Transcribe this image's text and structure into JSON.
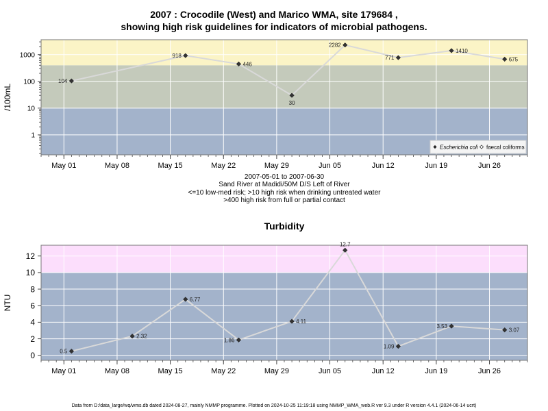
{
  "title_line1": "2007 : Crocodile (West) and Marico WMA, site 179684 ,",
  "title_line2": "showing high risk guidelines for indicators of microbial pathogens.",
  "notes": [
    "2007-05-01 to 2007-06-30",
    "Sand River at Madidi/50M D/S Left of River",
    "<=10 low-med risk; >10 high risk when drinking untreated water",
    ">400 high risk from full or partial contact"
  ],
  "footer": "Data from D:/data_large/wq/wms.db dated 2024-08-27, mainly NMMP programme. Plotted on 2024-10-25 11:19:18 using NMMP_WMA_web.R ver 9.3 under R version 4.4.1 (2024-06-14 ucrt)",
  "colors": {
    "grid": "#ffffff",
    "line": "#d9d9d9",
    "point": "#333333",
    "microbe_bands": [
      "#a3b3cb",
      "#c4cabb",
      "#fbf4c6"
    ],
    "turbidity_bands": [
      "#a3b3cb",
      "#fcdefc"
    ]
  },
  "chart_data": [
    {
      "type": "line",
      "title": "",
      "xlabel": "",
      "ylabel": "/100mL",
      "scale": "log10",
      "ylim": [
        0.18,
        3600
      ],
      "xlim": [
        "2007-04-28",
        "2007-07-01"
      ],
      "x_ticks": [
        "May 01",
        "May 08",
        "May 15",
        "May 22",
        "May 29",
        "Jun 05",
        "Jun 12",
        "Jun 19",
        "Jun 26"
      ],
      "y_ticks": [
        "1",
        "10",
        "100",
        "1000"
      ],
      "bands": [
        {
          "from": 0.18,
          "to": 10
        },
        {
          "from": 10,
          "to": 400
        },
        {
          "from": 400,
          "to": 3600
        }
      ],
      "legend": {
        "position": "bottom-right",
        "entries": [
          "Escherichia coli",
          "faecal coliforms"
        ]
      },
      "series": [
        {
          "name": "Escherichia coli",
          "x": [
            "2007-05-02",
            "2007-05-17",
            "2007-05-24",
            "2007-05-31",
            "2007-06-07",
            "2007-06-14",
            "2007-06-21",
            "2007-06-28"
          ],
          "values": [
            104,
            918,
            446,
            30,
            2282,
            771,
            1410,
            675
          ],
          "labels": [
            "104",
            "918",
            "446",
            "30",
            "2282",
            "771",
            "1410",
            "675"
          ],
          "label_side": [
            "left",
            "left",
            "right",
            "below",
            "left",
            "left",
            "right",
            "right"
          ]
        }
      ]
    },
    {
      "type": "line",
      "title": "Turbidity",
      "xlabel": "",
      "ylabel": "NTU",
      "ylim": [
        -0.6,
        13.3
      ],
      "xlim": [
        "2007-04-28",
        "2007-07-01"
      ],
      "x_ticks": [
        "May 01",
        "May 08",
        "May 15",
        "May 22",
        "May 29",
        "Jun 05",
        "Jun 12",
        "Jun 19",
        "Jun 26"
      ],
      "y_ticks": [
        "0",
        "2",
        "4",
        "6",
        "8",
        "10",
        "12"
      ],
      "bands": [
        {
          "from": -0.6,
          "to": 10
        },
        {
          "from": 10,
          "to": 13.3
        }
      ],
      "series": [
        {
          "x": [
            "2007-05-02",
            "2007-05-10",
            "2007-05-17",
            "2007-05-24",
            "2007-05-31",
            "2007-06-07",
            "2007-06-14",
            "2007-06-21",
            "2007-06-28"
          ],
          "values": [
            0.5,
            2.32,
            6.77,
            1.86,
            4.11,
            12.7,
            1.09,
            3.53,
            3.07
          ],
          "labels": [
            "0.5",
            "2.32",
            "6.77",
            "1.86",
            "4.11",
            "12.7",
            "1.09",
            "3.53",
            "3.07"
          ],
          "label_side": [
            "left",
            "right",
            "right",
            "left",
            "right",
            "above",
            "left",
            "left",
            "right"
          ]
        }
      ]
    }
  ]
}
